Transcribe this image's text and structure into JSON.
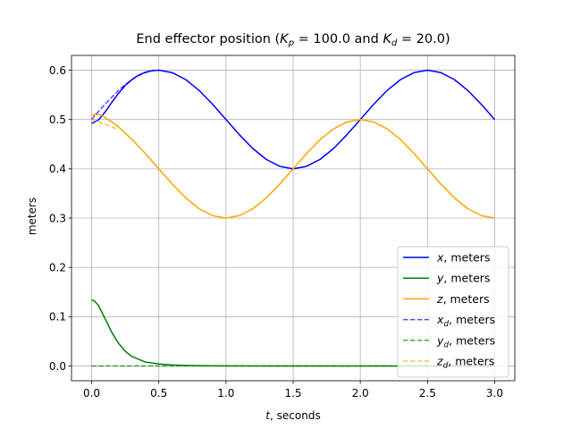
{
  "chart_data": {
    "type": "line",
    "title": {
      "prefix": "End effector position (",
      "kp_symbol": "K",
      "kp_sub": "p",
      "kp_value": " = 100.0 and ",
      "kd_symbol": "K",
      "kd_sub": "d",
      "kd_value": " = 20.0)"
    },
    "xlabel": {
      "symbol": "t",
      "text": ", seconds"
    },
    "ylabel": "meters",
    "xlim": [
      -0.15,
      3.15
    ],
    "ylim": [
      -0.03,
      0.63
    ],
    "xticks": [
      "0.0",
      "0.5",
      "1.0",
      "1.5",
      "2.0",
      "2.5",
      "3.0"
    ],
    "yticks": [
      "0.0",
      "0.1",
      "0.2",
      "0.3",
      "0.4",
      "0.5",
      "0.6"
    ],
    "grid": true,
    "legend_position": "lower right",
    "series": [
      {
        "key": "x",
        "symbol": "x",
        "sub": "",
        "unit": ", meters",
        "color": "#0000ff",
        "style": "solid",
        "x": [
          0,
          0.05,
          0.1,
          0.15,
          0.2,
          0.25,
          0.3,
          0.35,
          0.4,
          0.45,
          0.5,
          0.6,
          0.7,
          0.8,
          0.9,
          1.0,
          1.1,
          1.2,
          1.3,
          1.4,
          1.5,
          1.6,
          1.7,
          1.8,
          1.9,
          2.0,
          2.1,
          2.2,
          2.3,
          2.4,
          2.5,
          2.6,
          2.7,
          2.8,
          2.9,
          3.0
        ],
        "y": [
          0.492,
          0.499,
          0.515,
          0.535,
          0.553,
          0.569,
          0.581,
          0.59,
          0.596,
          0.599,
          0.6,
          0.595,
          0.581,
          0.559,
          0.531,
          0.5,
          0.469,
          0.441,
          0.419,
          0.405,
          0.4,
          0.405,
          0.419,
          0.441,
          0.469,
          0.5,
          0.531,
          0.559,
          0.581,
          0.595,
          0.6,
          0.595,
          0.581,
          0.559,
          0.531,
          0.5
        ]
      },
      {
        "key": "y",
        "symbol": "y",
        "sub": "",
        "unit": ", meters",
        "color": "#008000",
        "style": "solid",
        "x": [
          0,
          0.02,
          0.05,
          0.1,
          0.15,
          0.2,
          0.25,
          0.3,
          0.4,
          0.5,
          0.6,
          0.7,
          0.8,
          1.0,
          1.5,
          2.0,
          2.5,
          3.0
        ],
        "y": [
          0.134,
          0.132,
          0.123,
          0.096,
          0.068,
          0.046,
          0.03,
          0.019,
          0.008,
          0.004,
          0.002,
          0.001,
          0.0006,
          0.0002,
          0.0,
          0.0,
          0.0,
          0.0
        ]
      },
      {
        "key": "z",
        "symbol": "z",
        "sub": "",
        "unit": ", meters",
        "color": "#ffa500",
        "style": "solid",
        "x": [
          0,
          0.03,
          0.07,
          0.1,
          0.15,
          0.2,
          0.3,
          0.4,
          0.5,
          0.6,
          0.7,
          0.8,
          0.9,
          1.0,
          1.1,
          1.2,
          1.3,
          1.4,
          1.5,
          1.6,
          1.7,
          1.8,
          1.9,
          2.0,
          2.1,
          2.2,
          2.3,
          2.4,
          2.5,
          2.6,
          2.7,
          2.8,
          2.9,
          3.0
        ],
        "y": [
          0.508,
          0.511,
          0.509,
          0.504,
          0.495,
          0.485,
          0.46,
          0.431,
          0.4,
          0.369,
          0.341,
          0.319,
          0.305,
          0.3,
          0.305,
          0.319,
          0.341,
          0.369,
          0.4,
          0.431,
          0.459,
          0.481,
          0.495,
          0.5,
          0.495,
          0.481,
          0.459,
          0.431,
          0.4,
          0.369,
          0.341,
          0.319,
          0.305,
          0.3
        ]
      },
      {
        "key": "xd",
        "symbol": "x",
        "sub": "d",
        "unit": ", meters",
        "color": "#0000ff",
        "style": "dashed",
        "x": [
          0,
          0.05,
          0.1,
          0.15,
          0.2,
          0.25,
          0.3,
          0.35,
          0.4,
          0.45,
          0.5
        ],
        "y": [
          0.5,
          0.516,
          0.531,
          0.545,
          0.559,
          0.571,
          0.581,
          0.589,
          0.595,
          0.599,
          0.6
        ]
      },
      {
        "key": "yd",
        "symbol": "y",
        "sub": "d",
        "unit": ", meters",
        "color": "#008000",
        "style": "dashed",
        "x": [
          0,
          3.0
        ],
        "y": [
          0.0,
          0.0
        ]
      },
      {
        "key": "zd",
        "symbol": "z",
        "sub": "d",
        "unit": ", meters",
        "color": "#ffa500",
        "style": "dashed",
        "x": [
          0,
          0.05,
          0.1,
          0.15,
          0.2
        ],
        "y": [
          0.5,
          0.495,
          0.49,
          0.485,
          0.48
        ]
      }
    ]
  }
}
